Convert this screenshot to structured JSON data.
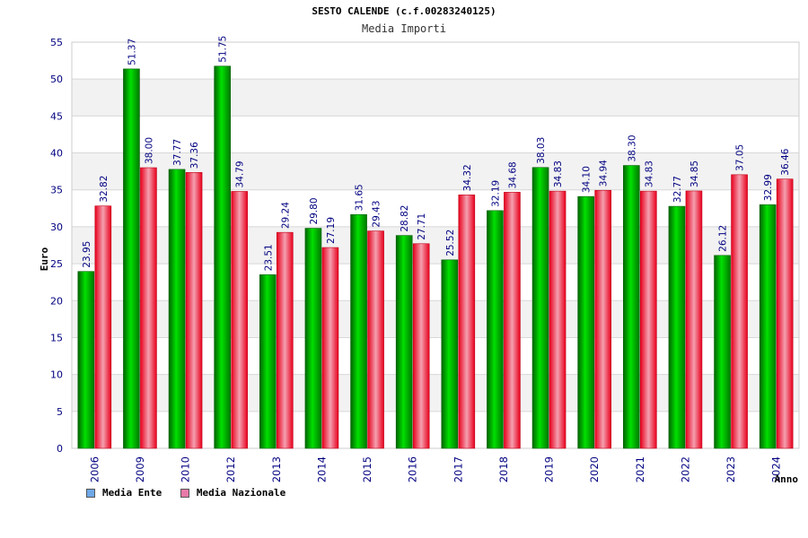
{
  "chart_data": {
    "type": "bar",
    "title": "SESTO CALENDE (c.f.00283240125)",
    "subtitle": "Media Importi",
    "ylabel": "Euro",
    "xlabel": "Anno",
    "ylim": [
      0,
      55
    ],
    "yticks": [
      0,
      5,
      10,
      15,
      20,
      25,
      30,
      35,
      40,
      45,
      50,
      55
    ],
    "grid": true,
    "legend_position": "bottom-left",
    "categories": [
      "2006",
      "2009",
      "2010",
      "2012",
      "2013",
      "2014",
      "2015",
      "2016",
      "2017",
      "2018",
      "2019",
      "2020",
      "2021",
      "2022",
      "2023",
      "2024"
    ],
    "series": [
      {
        "name": "Media Ente",
        "color": "#00a000",
        "legend_color": "#6fa8e8",
        "values": [
          23.95,
          51.37,
          37.77,
          51.75,
          23.51,
          29.8,
          31.65,
          28.82,
          25.52,
          32.19,
          38.03,
          34.1,
          38.3,
          32.77,
          26.12,
          32.99
        ],
        "labels": [
          "23.95",
          "51.37",
          "37.77",
          "51.75",
          "23.51",
          "29.80",
          "31.65",
          "28.82",
          "25.52",
          "32.19",
          "38.03",
          "34.10",
          "38.30",
          "32.77",
          "26.12",
          "32.99"
        ]
      },
      {
        "name": "Media Nazionale",
        "color": "#e01830",
        "legend_color": "#e87aa8",
        "values": [
          32.82,
          38.0,
          37.36,
          34.79,
          29.24,
          27.19,
          29.43,
          27.71,
          34.32,
          34.68,
          34.83,
          34.94,
          34.83,
          34.85,
          37.05,
          36.46
        ],
        "labels": [
          "32.82",
          "38.00",
          "37.36",
          "34.79",
          "29.24",
          "27.19",
          "29.43",
          "27.71",
          "34.32",
          "34.68",
          "34.83",
          "34.94",
          "34.83",
          "34.85",
          "37.05",
          "36.46"
        ]
      }
    ]
  }
}
